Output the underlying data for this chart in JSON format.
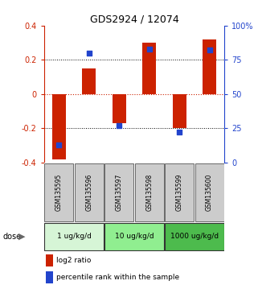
{
  "title": "GDS2924 / 12074",
  "samples": [
    "GSM135595",
    "GSM135596",
    "GSM135597",
    "GSM135598",
    "GSM135599",
    "GSM135600"
  ],
  "log2_ratios": [
    -0.38,
    0.15,
    -0.17,
    0.3,
    -0.2,
    0.32
  ],
  "percentile_ranks": [
    13,
    80,
    27,
    83,
    22,
    82
  ],
  "bar_color": "#cc2200",
  "dot_color": "#2244cc",
  "ylim_left": [
    -0.4,
    0.4
  ],
  "ylim_right": [
    0,
    100
  ],
  "hlines_black": [
    0.2,
    -0.2
  ],
  "hline_red": 0.0,
  "dose_groups": [
    {
      "label": "1 ug/kg/d",
      "indices": [
        0,
        1
      ],
      "color": "#d6f5d6"
    },
    {
      "label": "10 ug/kg/d",
      "indices": [
        2,
        3
      ],
      "color": "#90ee90"
    },
    {
      "label": "1000 ug/kg/d",
      "indices": [
        4,
        5
      ],
      "color": "#4dbb4d"
    }
  ],
  "dose_label": "dose",
  "legend_bar_label": "log2 ratio",
  "legend_dot_label": "percentile rank within the sample",
  "left_axis_color": "#cc2200",
  "right_axis_color": "#2244cc",
  "right_yticks": [
    0,
    25,
    50,
    75,
    100
  ],
  "right_yticklabels": [
    "0",
    "25",
    "50",
    "75",
    "100%"
  ],
  "left_yticks": [
    -0.4,
    -0.2,
    0.0,
    0.2,
    0.4
  ],
  "left_yticklabels": [
    "-0.4",
    "-0.2",
    "0",
    "0.2",
    "0.4"
  ],
  "sample_box_color": "#cccccc",
  "background_color": "#ffffff"
}
